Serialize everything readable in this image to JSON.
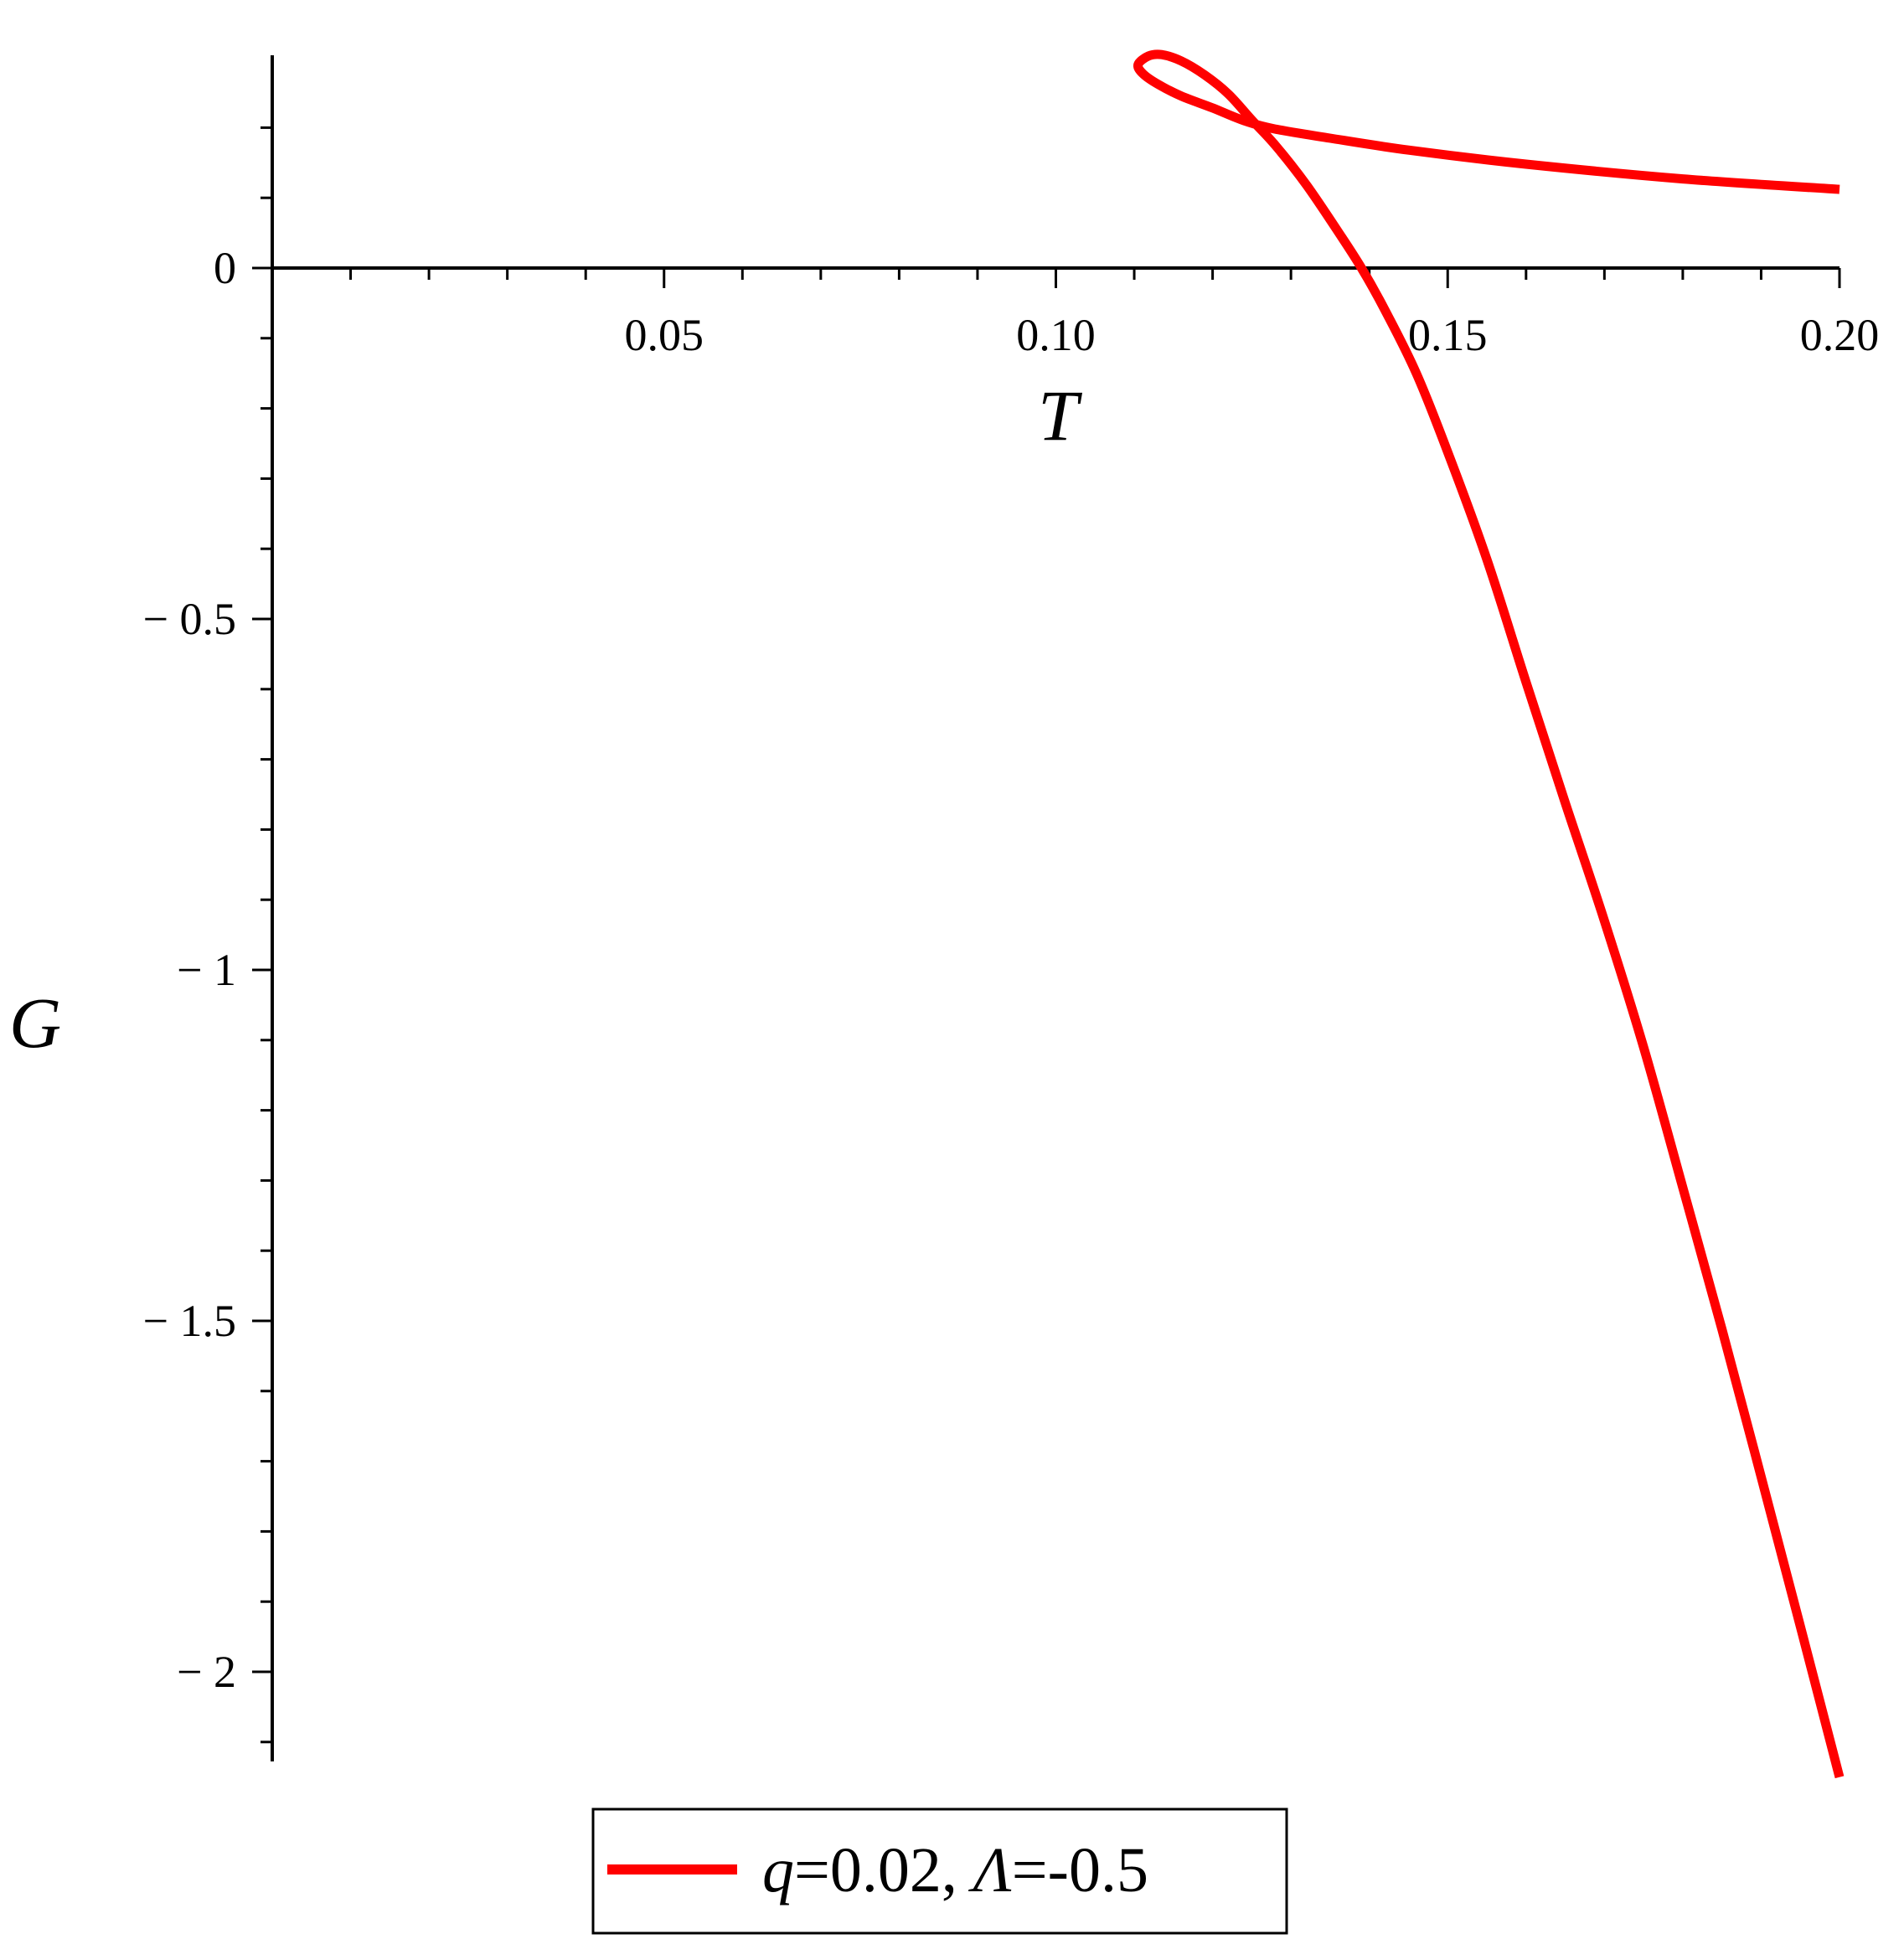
{
  "chart_data": {
    "type": "line",
    "xlabel": "T",
    "ylabel": "G",
    "xlim": [
      0,
      0.2
    ],
    "ylim": [
      -2.1,
      0.3
    ],
    "x_ticks": [
      {
        "value": 0.05,
        "label": "0.05"
      },
      {
        "value": 0.1,
        "label": "0.10"
      },
      {
        "value": 0.15,
        "label": "0.15"
      },
      {
        "value": 0.2,
        "label": "0.20"
      }
    ],
    "y_ticks": [
      {
        "value": 0,
        "label": "0"
      },
      {
        "value": -0.5,
        "label": "− 0.5"
      },
      {
        "value": -1,
        "label": "− 1"
      },
      {
        "value": -1.5,
        "label": "− 1.5"
      },
      {
        "value": -2,
        "label": "− 2"
      }
    ],
    "grid": false,
    "legend_position": "bottom",
    "series": [
      {
        "name": "q=0.02, Λ=-0.5",
        "name_parts": [
          {
            "text": "q",
            "italic": true
          },
          {
            "text": "=0.02, ",
            "italic": false
          },
          {
            "text": "Λ",
            "italic": true
          },
          {
            "text": "=-0.5",
            "italic": false
          }
        ],
        "color": "#ff0000",
        "points": [
          [
            0.2,
            0.112
          ],
          [
            0.18,
            0.127
          ],
          [
            0.16,
            0.148
          ],
          [
            0.145,
            0.168
          ],
          [
            0.135,
            0.185
          ],
          [
            0.128,
            0.198
          ],
          [
            0.124,
            0.21
          ],
          [
            0.12,
            0.228
          ],
          [
            0.116,
            0.245
          ],
          [
            0.113,
            0.262
          ],
          [
            0.1111,
            0.277
          ],
          [
            0.1105,
            0.29
          ],
          [
            0.1118,
            0.302
          ],
          [
            0.1135,
            0.304
          ],
          [
            0.116,
            0.295
          ],
          [
            0.119,
            0.275
          ],
          [
            0.122,
            0.248
          ],
          [
            0.125,
            0.211
          ],
          [
            0.128,
            0.175
          ],
          [
            0.132,
            0.118
          ],
          [
            0.136,
            0.052
          ],
          [
            0.139,
            0.0
          ],
          [
            0.142,
            -0.06
          ],
          [
            0.146,
            -0.15
          ],
          [
            0.15,
            -0.262
          ],
          [
            0.155,
            -0.415
          ],
          [
            0.16,
            -0.59
          ],
          [
            0.165,
            -0.762
          ],
          [
            0.17,
            -0.93
          ],
          [
            0.175,
            -1.11
          ],
          [
            0.18,
            -1.31
          ],
          [
            0.185,
            -1.512
          ],
          [
            0.19,
            -1.722
          ],
          [
            0.195,
            -1.935
          ],
          [
            0.2,
            -2.15
          ]
        ]
      }
    ]
  }
}
